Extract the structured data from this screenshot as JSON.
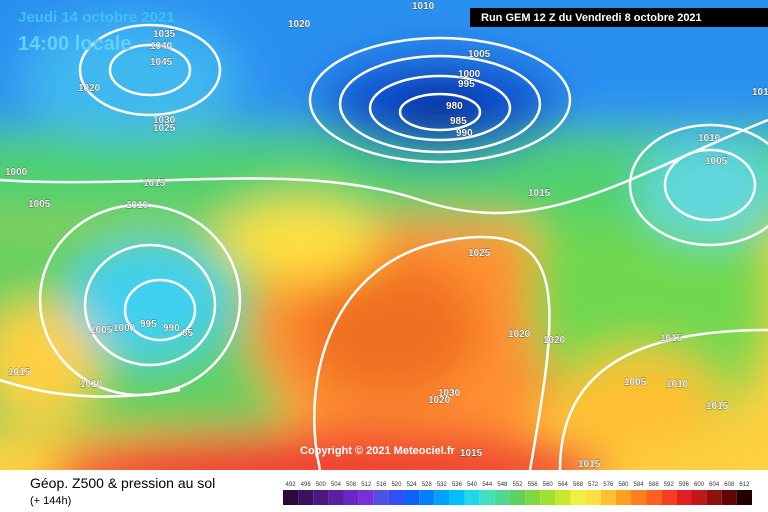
{
  "header": {
    "date": "Jeudi 14 octobre 2021",
    "time": "14:00 locale",
    "run": "Run GEM 12 Z du Vendredi 8 octobre 2021",
    "copyright": "Copyright © 2021 Meteociel.fr"
  },
  "isobars": [
    "1010",
    "1020",
    "1035",
    "1040",
    "1045",
    "1005",
    "1000",
    "995",
    "980",
    "985",
    "990",
    "1020",
    "1030",
    "1025",
    "1010",
    "1005",
    "1000",
    "1015",
    "1005",
    "1010",
    "1015",
    "1025",
    "1005",
    "1000",
    "995",
    "990",
    "85",
    "1020",
    "1020",
    "1015",
    "1015",
    "1010",
    "1005",
    "1010",
    "1030",
    "1020",
    "1015",
    "1015",
    "1015",
    "101"
  ],
  "legend": {
    "title": "Géop. Z500 & pression au sol",
    "subtitle": "(+ 144h)",
    "scale": [
      {
        "label": "492",
        "color": "#2a0a3a"
      },
      {
        "label": "496",
        "color": "#3a1260"
      },
      {
        "label": "500",
        "color": "#4a1880"
      },
      {
        "label": "504",
        "color": "#5a20a0"
      },
      {
        "label": "508",
        "color": "#6a28c0"
      },
      {
        "label": "512",
        "color": "#7a30d8"
      },
      {
        "label": "516",
        "color": "#5050e8"
      },
      {
        "label": "520",
        "color": "#3050f0"
      },
      {
        "label": "524",
        "color": "#1060f8"
      },
      {
        "label": "528",
        "color": "#0080ff"
      },
      {
        "label": "532",
        "color": "#00a0ff"
      },
      {
        "label": "536",
        "color": "#00c0ff"
      },
      {
        "label": "540",
        "color": "#20d8e8"
      },
      {
        "label": "544",
        "color": "#40e0c0"
      },
      {
        "label": "548",
        "color": "#50d890"
      },
      {
        "label": "552",
        "color": "#60d060"
      },
      {
        "label": "556",
        "color": "#80d840"
      },
      {
        "label": "560",
        "color": "#a0e030"
      },
      {
        "label": "564",
        "color": "#c8e830"
      },
      {
        "label": "568",
        "color": "#f0f040"
      },
      {
        "label": "572",
        "color": "#ffe040"
      },
      {
        "label": "576",
        "color": "#ffc030"
      },
      {
        "label": "580",
        "color": "#ffa020"
      },
      {
        "label": "584",
        "color": "#ff8020"
      },
      {
        "label": "588",
        "color": "#ff6020"
      },
      {
        "label": "592",
        "color": "#f04020"
      },
      {
        "label": "596",
        "color": "#e02020"
      },
      {
        "label": "600",
        "color": "#c01818"
      },
      {
        "label": "604",
        "color": "#901010"
      },
      {
        "label": "608",
        "color": "#600808"
      },
      {
        "label": "612",
        "color": "#200000"
      }
    ]
  }
}
